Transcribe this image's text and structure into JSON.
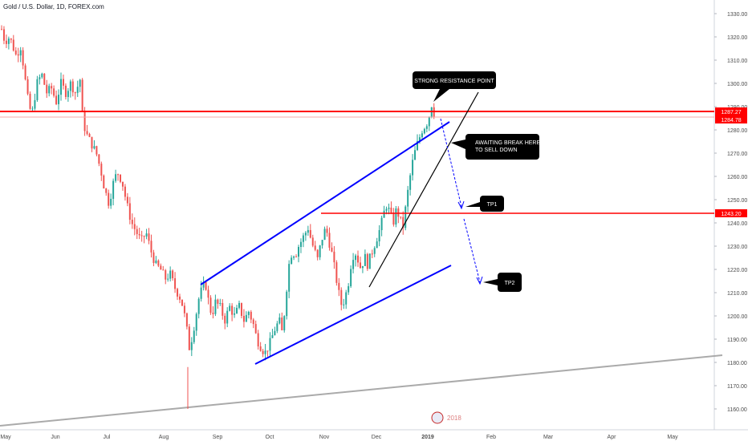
{
  "header": {
    "title": "Gold / U.S. Dollar, 1D, FOREX.com"
  },
  "chart_data": {
    "type": "candlestick",
    "title": "Gold / U.S. Dollar, 1D, FOREX.com",
    "ylim": [
      1155,
      1335
    ],
    "y_ticks": [
      "1330.00",
      "1320.00",
      "1310.00",
      "1300.00",
      "1290.00",
      "1280.00",
      "1270.00",
      "1260.00",
      "1250.00",
      "1240.00",
      "1230.00",
      "1220.00",
      "1210.00",
      "1200.00",
      "1190.00",
      "1180.00",
      "1170.00",
      "1160.00"
    ],
    "x_ticks": [
      "May",
      "Jun",
      "Jul",
      "Aug",
      "Sep",
      "Oct",
      "Nov",
      "Dec",
      "2019",
      "Feb",
      "Mar",
      "Apr",
      "May"
    ],
    "grid": false,
    "price_path": [
      [
        0,
        1326
      ],
      [
        6,
        1318
      ],
      [
        12,
        1320
      ],
      [
        20,
        1312
      ],
      [
        26,
        1316
      ],
      [
        32,
        1300
      ],
      [
        36,
        1290
      ],
      [
        40,
        1287
      ],
      [
        46,
        1300
      ],
      [
        52,
        1304
      ],
      [
        58,
        1296
      ],
      [
        64,
        1298
      ],
      [
        70,
        1292
      ],
      [
        76,
        1300
      ],
      [
        82,
        1296
      ],
      [
        88,
        1300
      ],
      [
        94,
        1296
      ],
      [
        100,
        1302
      ],
      [
        103,
        1284
      ],
      [
        108,
        1278
      ],
      [
        114,
        1274
      ],
      [
        120,
        1270
      ],
      [
        126,
        1262
      ],
      [
        130,
        1255
      ],
      [
        136,
        1248
      ],
      [
        140,
        1256
      ],
      [
        146,
        1262
      ],
      [
        152,
        1258
      ],
      [
        158,
        1248
      ],
      [
        164,
        1240
      ],
      [
        170,
        1236
      ],
      [
        176,
        1232
      ],
      [
        182,
        1236
      ],
      [
        188,
        1228
      ],
      [
        194,
        1222
      ],
      [
        200,
        1220
      ],
      [
        206,
        1216
      ],
      [
        212,
        1218
      ],
      [
        218,
        1212
      ],
      [
        224,
        1208
      ],
      [
        228,
        1204
      ],
      [
        232,
        1196
      ],
      [
        236,
        1186
      ],
      [
        240,
        1192
      ],
      [
        244,
        1200
      ],
      [
        248,
        1208
      ],
      [
        252,
        1212
      ],
      [
        256,
        1214
      ],
      [
        260,
        1206
      ],
      [
        264,
        1200
      ],
      [
        268,
        1206
      ],
      [
        274,
        1204
      ],
      [
        280,
        1198
      ],
      [
        286,
        1204
      ],
      [
        292,
        1200
      ],
      [
        298,
        1204
      ],
      [
        304,
        1198
      ],
      [
        310,
        1202
      ],
      [
        316,
        1196
      ],
      [
        320,
        1190
      ],
      [
        326,
        1186
      ],
      [
        330,
        1184
      ],
      [
        336,
        1188
      ],
      [
        342,
        1194
      ],
      [
        348,
        1198
      ],
      [
        352,
        1192
      ],
      [
        356,
        1208
      ],
      [
        360,
        1222
      ],
      [
        364,
        1228
      ],
      [
        368,
        1226
      ],
      [
        372,
        1230
      ],
      [
        378,
        1234
      ],
      [
        384,
        1238
      ],
      [
        388,
        1232
      ],
      [
        392,
        1228
      ],
      [
        396,
        1224
      ],
      [
        400,
        1232
      ],
      [
        406,
        1238
      ],
      [
        410,
        1232
      ],
      [
        414,
        1226
      ],
      [
        418,
        1218
      ],
      [
        422,
        1210
      ],
      [
        426,
        1204
      ],
      [
        430,
        1208
      ],
      [
        434,
        1214
      ],
      [
        438,
        1224
      ],
      [
        442,
        1228
      ],
      [
        446,
        1224
      ],
      [
        450,
        1220
      ],
      [
        454,
        1226
      ],
      [
        458,
        1222
      ],
      [
        462,
        1226
      ],
      [
        466,
        1230
      ],
      [
        470,
        1234
      ],
      [
        474,
        1238
      ],
      [
        478,
        1244
      ],
      [
        482,
        1248
      ],
      [
        486,
        1244
      ],
      [
        490,
        1240
      ],
      [
        494,
        1246
      ],
      [
        498,
        1242
      ],
      [
        502,
        1238
      ],
      [
        506,
        1248
      ],
      [
        510,
        1258
      ],
      [
        514,
        1266
      ],
      [
        518,
        1272
      ],
      [
        522,
        1276
      ],
      [
        526,
        1280
      ],
      [
        530,
        1282
      ],
      [
        534,
        1284
      ],
      [
        537,
        1292
      ],
      [
        540,
        1288
      ],
      [
        543,
        1285
      ]
    ],
    "horizontal_levels": [
      {
        "value": 1287.27,
        "label": "1287.27"
      },
      {
        "value": 1284.78,
        "label": "1284.78"
      },
      {
        "value": 1243.2,
        "label": "1243.20"
      }
    ],
    "annotations": [
      {
        "name": "resistance",
        "text": "STRONG RESISTANCE POINT"
      },
      {
        "name": "break",
        "lines": [
          "AWAITING BREAK HERE",
          "TO SELL DOWN"
        ]
      },
      {
        "name": "tp1",
        "text": "TP1"
      },
      {
        "name": "tp2",
        "text": "TP2"
      }
    ],
    "watermark": "2018"
  },
  "colors": {
    "up": "#26a69a",
    "down": "#ef5350",
    "channel": "#0000ff",
    "resistance": "#ff0000",
    "trend_gray": "#aaaaaa",
    "label_bg": "#000000"
  }
}
